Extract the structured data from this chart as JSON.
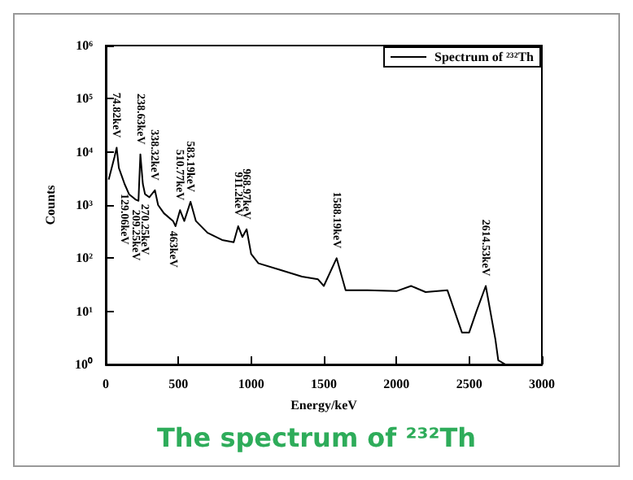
{
  "chart_data": {
    "type": "line",
    "title": "The spectrum of ²³²Th",
    "xlabel": "Energy/keV",
    "ylabel": "Counts",
    "x": [
      20,
      60,
      75,
      90,
      110,
      129,
      160,
      200,
      209,
      225,
      238,
      255,
      270,
      300,
      338,
      360,
      400,
      463,
      480,
      511,
      540,
      583,
      620,
      700,
      800,
      880,
      911,
      940,
      969,
      1000,
      1050,
      1200,
      1350,
      1460,
      1500,
      1588,
      1650,
      1800,
      2000,
      2100,
      2200,
      2350,
      2450,
      2500,
      2550,
      2614,
      2680,
      2700,
      2750
    ],
    "series": [
      {
        "name": "Spectrum of ²³²Th",
        "color": "#000000",
        "values": [
          3000,
          8000,
          12000,
          5000,
          3500,
          2500,
          1600,
          1300,
          1250,
          1200,
          9000,
          2500,
          1600,
          1400,
          1900,
          1000,
          700,
          500,
          400,
          800,
          500,
          1150,
          500,
          300,
          220,
          200,
          400,
          250,
          350,
          120,
          80,
          60,
          45,
          40,
          30,
          100,
          25,
          25,
          24,
          30,
          23,
          25,
          4,
          4,
          10,
          30,
          3,
          1.2,
          1
        ]
      }
    ],
    "xlim": [
      0,
      3000
    ],
    "xticks": [
      0,
      500,
      1000,
      1500,
      2000,
      2500,
      3000
    ],
    "ylim": [
      1,
      1000000
    ],
    "yticks": [
      {
        "value": 1,
        "label": "10⁰"
      },
      {
        "value": 10,
        "label": "10¹"
      },
      {
        "value": 100,
        "label": "10²"
      },
      {
        "value": 1000,
        "label": "10³"
      },
      {
        "value": 10000,
        "label": "10⁴"
      },
      {
        "value": 100000,
        "label": "10⁵"
      },
      {
        "value": 1000000,
        "label": "10⁶"
      }
    ],
    "log": "y",
    "grid": false,
    "legend": "top right",
    "marker": "none",
    "line_style": "solid",
    "annotations": [
      {
        "text": "74.82keV",
        "x": 75,
        "y": 12000
      },
      {
        "text": "238.63keV",
        "x": 238,
        "y": 9000
      },
      {
        "text": "338.32keV",
        "x": 338,
        "y": 1900
      },
      {
        "text": "510.77keV",
        "x": 511,
        "y": 800
      },
      {
        "text": "583.19keV",
        "x": 583,
        "y": 1150
      },
      {
        "text": "911.2keV",
        "x": 911,
        "y": 400
      },
      {
        "text": "968.97keV",
        "x": 969,
        "y": 350
      },
      {
        "text": "1588.19keV",
        "x": 1588,
        "y": 100
      },
      {
        "text": "2614.53keV",
        "x": 2614,
        "y": 30
      },
      {
        "text": "129.06keV",
        "x": 129,
        "y": 2500
      },
      {
        "text": "209.25keV",
        "x": 209,
        "y": 1250
      },
      {
        "text": "270.25keV",
        "x": 270,
        "y": 1600
      },
      {
        "text": "463keV",
        "x": 463,
        "y": 500
      }
    ]
  }
}
